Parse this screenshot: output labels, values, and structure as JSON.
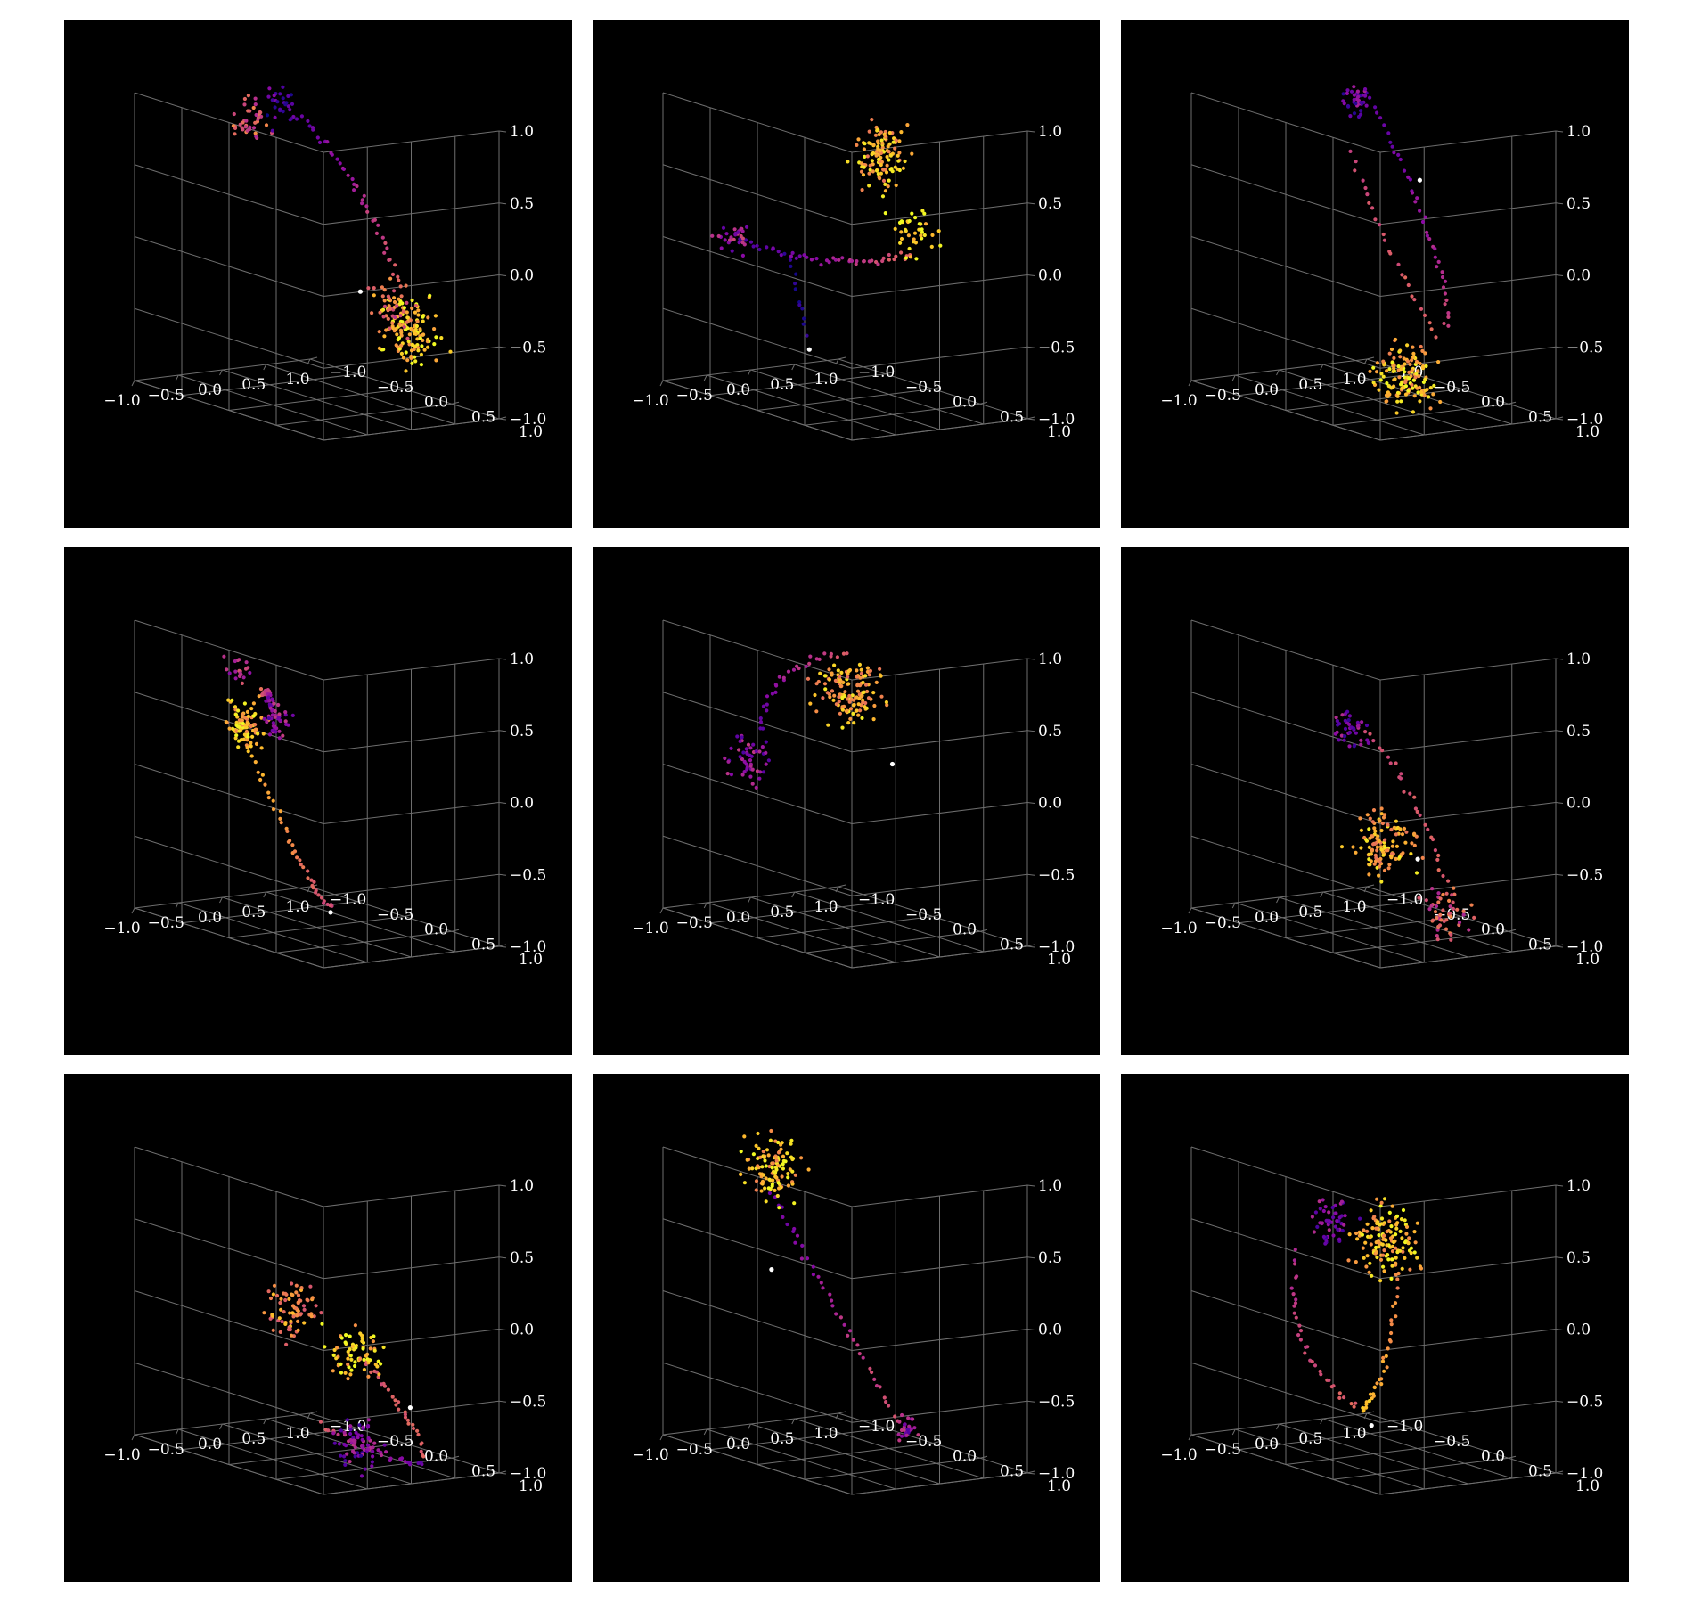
{
  "figure": {
    "background": "#ffffff",
    "panel_background": "#000000",
    "grid_color": "#6e6e6e",
    "colormap": "plasma",
    "layout": "3x3 grid"
  },
  "chart_data": [
    {
      "type": "scatter3d",
      "panel": 1,
      "xlim": [
        -1,
        1
      ],
      "ylim": [
        -1,
        1
      ],
      "zlim": [
        -1,
        1
      ],
      "x_ticks": [
        "−1.0",
        "−0.5",
        "0.0",
        "0.5",
        "1.0"
      ],
      "y_ticks": [
        "−1.0",
        "−0.5",
        "0.0",
        "0.5",
        "1.0"
      ],
      "z_ticks": [
        "−1.0",
        "−0.5",
        "0.0",
        "0.5",
        "1.0"
      ],
      "grid": true,
      "legend": "none",
      "clusters": [
        {
          "center": [
            0.05,
            -0.75,
            0.78
          ],
          "spread": 0.08,
          "n": 40,
          "c": 0.55
        },
        {
          "center": [
            0.15,
            -0.55,
            0.9
          ],
          "spread": 0.08,
          "n": 25,
          "c": 0.12
        },
        {
          "center": [
            0.85,
            0.2,
            -0.55
          ],
          "spread": 0.12,
          "n": 130,
          "c": 0.9
        },
        {
          "center": [
            0.8,
            0.1,
            -0.4
          ],
          "spread": 0.1,
          "n": 40,
          "c": 0.6
        }
      ],
      "arcs": [
        {
          "from": [
            0.2,
            -0.5,
            0.9
          ],
          "via": [
            0.8,
            -0.2,
            0.5
          ],
          "to": [
            0.8,
            0.15,
            -0.3
          ],
          "n": 45,
          "c": [
            0.15,
            0.6
          ]
        }
      ],
      "marker": [
        0.55,
        -0.05,
        -0.3
      ]
    },
    {
      "type": "scatter3d",
      "panel": 2,
      "xlim": [
        -1,
        1
      ],
      "ylim": [
        -1,
        1
      ],
      "zlim": [
        -1,
        1
      ],
      "x_ticks": [
        "−1.0",
        "−0.5",
        "0.0",
        "0.5",
        "1.0"
      ],
      "y_ticks": [
        "−1.0",
        "−0.5",
        "0.0",
        "0.5",
        "1.0"
      ],
      "z_ticks": [
        "−1.0",
        "−0.5",
        "0.0",
        "0.5",
        "1.0"
      ],
      "grid": true,
      "legend": "none",
      "clusters": [
        {
          "center": [
            -0.85,
            -0.4,
            0.1
          ],
          "spread": 0.06,
          "n": 30,
          "c": 0.35
        },
        {
          "center": [
            0.1,
            0.3,
            0.75
          ],
          "spread": 0.12,
          "n": 120,
          "c": 0.8
        },
        {
          "center": [
            0.2,
            0.55,
            0.25
          ],
          "spread": 0.1,
          "n": 40,
          "c": 0.95
        }
      ],
      "arcs": [
        {
          "from": [
            -0.8,
            -0.4,
            0.1
          ],
          "via": [
            -0.2,
            0.1,
            -0.1
          ],
          "to": [
            0.2,
            0.5,
            0.1
          ],
          "n": 50,
          "c": [
            0.1,
            0.6
          ]
        },
        {
          "from": [
            -0.35,
            -0.3,
            0.0
          ],
          "via": [
            -0.3,
            -0.2,
            -0.3
          ],
          "to": [
            -0.3,
            -0.15,
            -0.55
          ],
          "n": 12,
          "c": [
            0.05,
            0.05
          ]
        }
      ],
      "marker": [
        -0.3,
        -0.1,
        -0.65
      ]
    },
    {
      "type": "scatter3d",
      "panel": 3,
      "xlim": [
        -1,
        1
      ],
      "ylim": [
        -1,
        1
      ],
      "zlim": [
        -1,
        1
      ],
      "x_ticks": [
        "−1.0",
        "−0.5",
        "0.0",
        "0.5",
        "1.0"
      ],
      "y_ticks": [
        "−1.0",
        "−0.5",
        "0.0",
        "0.5",
        "1.0"
      ],
      "z_ticks": [
        "−1.0",
        "−0.5",
        "0.0",
        "0.5",
        "1.0"
      ],
      "grid": true,
      "legend": "none",
      "clusters": [
        {
          "center": [
            0.35,
            -0.5,
            0.95
          ],
          "spread": 0.06,
          "n": 40,
          "c": 0.2
        },
        {
          "center": [
            -0.05,
            0.35,
            -0.75
          ],
          "spread": 0.12,
          "n": 140,
          "c": 0.85
        }
      ],
      "arcs": [
        {
          "from": [
            0.45,
            -0.45,
            0.95
          ],
          "via": [
            0.95,
            -0.2,
            0.1
          ],
          "to": [
            0.65,
            0.2,
            -0.5
          ],
          "n": 40,
          "c": [
            0.15,
            0.5
          ]
        },
        {
          "from": [
            0.2,
            -0.4,
            0.6
          ],
          "via": [
            0.25,
            -0.1,
            0.0
          ],
          "to": [
            0.45,
            0.25,
            -0.55
          ],
          "n": 25,
          "c": [
            0.5,
            0.6
          ]
        }
      ],
      "marker": [
        0.85,
        -0.3,
        0.4
      ]
    },
    {
      "type": "scatter3d",
      "panel": 4,
      "xlim": [
        -1,
        1
      ],
      "ylim": [
        -1,
        1
      ],
      "zlim": [
        -1,
        1
      ],
      "x_ticks": [
        "−1.0",
        "−0.5",
        "0.0",
        "0.5",
        "1.0"
      ],
      "y_ticks": [
        "−1.0",
        "−0.5",
        "0.0",
        "0.5",
        "1.0"
      ],
      "z_ticks": [
        "−1.0",
        "−0.5",
        "0.0",
        "0.5",
        "1.0"
      ],
      "grid": true,
      "legend": "none",
      "clusters": [
        {
          "center": [
            -0.55,
            -0.25,
            0.4
          ],
          "spread": 0.08,
          "n": 90,
          "c": 0.85
        },
        {
          "center": [
            0.45,
            -0.85,
            0.25
          ],
          "spread": 0.07,
          "n": 40,
          "c": 0.3
        },
        {
          "center": [
            -0.5,
            -0.35,
            0.75
          ],
          "spread": 0.06,
          "n": 20,
          "c": 0.45
        }
      ],
      "arcs": [
        {
          "from": [
            -0.55,
            -0.3,
            0.4
          ],
          "via": [
            -0.3,
            0.1,
            -0.6
          ],
          "to": [
            0.05,
            0.1,
            -0.85
          ],
          "n": 45,
          "c": [
            0.9,
            0.5
          ]
        },
        {
          "from": [
            -0.35,
            -0.25,
            0.6
          ],
          "via": [
            0.05,
            -0.55,
            0.55
          ],
          "to": [
            0.4,
            -0.85,
            0.3
          ],
          "n": 30,
          "c": [
            0.6,
            0.2
          ]
        }
      ],
      "marker": [
        0.05,
        0.1,
        -0.88
      ]
    },
    {
      "type": "scatter3d",
      "panel": 5,
      "xlim": [
        -1,
        1
      ],
      "ylim": [
        -1,
        1
      ],
      "zlim": [
        -1,
        1
      ],
      "x_ticks": [
        "−1.0",
        "−0.5",
        "0.0",
        "0.5",
        "1.0"
      ],
      "y_ticks": [
        "−1.0",
        "−0.5",
        "0.0",
        "0.5",
        "1.0"
      ],
      "z_ticks": [
        "−1.0",
        "−0.5",
        "0.0",
        "0.5",
        "1.0"
      ],
      "grid": true,
      "legend": "none",
      "clusters": [
        {
          "center": [
            -0.55,
            -0.5,
            0.1
          ],
          "spread": 0.08,
          "n": 50,
          "c": 0.3
        },
        {
          "center": [
            0.35,
            -0.3,
            0.55
          ],
          "spread": 0.13,
          "n": 140,
          "c": 0.8
        }
      ],
      "arcs": [
        {
          "from": [
            -0.45,
            -0.5,
            0.3
          ],
          "via": [
            -0.1,
            -0.65,
            0.75
          ],
          "to": [
            0.45,
            -0.4,
            0.8
          ],
          "n": 30,
          "c": [
            0.15,
            0.55
          ]
        }
      ],
      "marker": [
        0.7,
        -0.15,
        0.05
      ]
    },
    {
      "type": "scatter3d",
      "panel": 6,
      "xlim": [
        -1,
        1
      ],
      "ylim": [
        -1,
        1
      ],
      "zlim": [
        -1,
        1
      ],
      "x_ticks": [
        "−1.0",
        "−0.5",
        "0.0",
        "0.5",
        "1.0"
      ],
      "y_ticks": [
        "−1.0",
        "−0.5",
        "0.0",
        "0.5",
        "1.0"
      ],
      "z_ticks": [
        "−1.0",
        "−0.5",
        "0.0",
        "0.5",
        "1.0"
      ],
      "grid": true,
      "legend": "none",
      "clusters": [
        {
          "center": [
            0.2,
            -0.45,
            0.25
          ],
          "spread": 0.07,
          "n": 40,
          "c": 0.25
        },
        {
          "center": [
            0.15,
            0.0,
            -0.45
          ],
          "spread": 0.12,
          "n": 120,
          "c": 0.8
        },
        {
          "center": [
            0.55,
            0.25,
            -0.9
          ],
          "spread": 0.1,
          "n": 50,
          "c": 0.55
        }
      ],
      "arcs": [
        {
          "from": [
            0.3,
            -0.35,
            0.25
          ],
          "via": [
            0.8,
            -0.2,
            -0.2
          ],
          "to": [
            0.7,
            0.2,
            -0.85
          ],
          "n": 30,
          "c": [
            0.5,
            0.6
          ]
        }
      ],
      "marker": [
        0.45,
        0.05,
        -0.55
      ]
    },
    {
      "type": "scatter3d",
      "panel": 7,
      "xlim": [
        -1,
        1
      ],
      "ylim": [
        -1,
        1
      ],
      "zlim": [
        -1,
        1
      ],
      "x_ticks": [
        "−1.0",
        "−0.5",
        "0.0",
        "0.5",
        "1.0"
      ],
      "y_ticks": [
        "−1.0",
        "−0.5",
        "0.0",
        "0.5",
        "1.0"
      ],
      "z_ticks": [
        "−1.0",
        "−0.5",
        "0.0",
        "0.5",
        "1.0"
      ],
      "grid": true,
      "legend": "none",
      "clusters": [
        {
          "center": [
            0.2,
            -0.45,
            -0.1
          ],
          "spread": 0.1,
          "n": 80,
          "c": 0.7
        },
        {
          "center": [
            0.5,
            -0.05,
            -0.35
          ],
          "spread": 0.1,
          "n": 70,
          "c": 0.9
        },
        {
          "center": [
            0.0,
            0.45,
            -0.85
          ],
          "spread": 0.09,
          "n": 60,
          "c": 0.25
        }
      ],
      "arcs": [
        {
          "from": [
            0.55,
            -0.05,
            -0.4
          ],
          "via": [
            0.9,
            0.1,
            -0.7
          ],
          "to": [
            0.7,
            0.5,
            -0.95
          ],
          "n": 30,
          "c": [
            0.55,
            0.6
          ]
        },
        {
          "from": [
            -0.3,
            0.3,
            -0.7
          ],
          "via": [
            0.2,
            0.55,
            -0.95
          ],
          "to": [
            0.6,
            0.55,
            -1.0
          ],
          "n": 30,
          "c": [
            0.55,
            0.2
          ]
        }
      ],
      "marker": [
        0.85,
        0.2,
        -0.7
      ]
    },
    {
      "type": "scatter3d",
      "panel": 8,
      "xlim": [
        -1,
        1
      ],
      "ylim": [
        -1,
        1
      ],
      "zlim": [
        -1,
        1
      ],
      "x_ticks": [
        "−1.0",
        "−0.5",
        "0.0",
        "0.5",
        "1.0"
      ],
      "y_ticks": [
        "−1.0",
        "−0.5",
        "0.0",
        "0.5",
        "1.0"
      ],
      "z_ticks": [
        "−1.0",
        "−0.5",
        "0.0",
        "0.5",
        "1.0"
      ],
      "grid": true,
      "legend": "none",
      "clusters": [
        {
          "center": [
            -0.1,
            -0.7,
            0.85
          ],
          "spread": 0.12,
          "n": 110,
          "c": 0.85
        },
        {
          "center": [
            0.6,
            0.1,
            -0.85
          ],
          "spread": 0.05,
          "n": 30,
          "c": 0.3
        }
      ],
      "arcs": [
        {
          "from": [
            -0.2,
            -0.6,
            0.7
          ],
          "via": [
            0.15,
            -0.3,
            0.0
          ],
          "to": [
            0.55,
            0.05,
            -0.8
          ],
          "n": 40,
          "c": [
            0.2,
            0.55
          ]
        }
      ],
      "marker": [
        -0.3,
        -0.5,
        0.2
      ]
    },
    {
      "type": "scatter3d",
      "panel": 9,
      "xlim": [
        -1,
        1
      ],
      "ylim": [
        -1,
        1
      ],
      "zlim": [
        -1,
        1
      ],
      "x_ticks": [
        "−1.0",
        "−0.5",
        "0.0",
        "0.5",
        "1.0"
      ],
      "y_ticks": [
        "−1.0",
        "−0.5",
        "0.0",
        "0.5",
        "1.0"
      ],
      "z_ticks": [
        "−1.0",
        "−0.5",
        "0.0",
        "0.5",
        "1.0"
      ],
      "grid": true,
      "legend": "none",
      "clusters": [
        {
          "center": [
            0.25,
            -0.1,
            0.45
          ],
          "spread": 0.13,
          "n": 140,
          "c": 0.85
        },
        {
          "center": [
            -0.1,
            -0.35,
            0.55
          ],
          "spread": 0.08,
          "n": 50,
          "c": 0.25
        }
      ],
      "arcs": [
        {
          "from": [
            -0.3,
            -0.55,
            0.3
          ],
          "via": [
            -0.7,
            -0.3,
            -0.4
          ],
          "to": [
            -0.45,
            0.3,
            -0.6
          ],
          "n": 35,
          "c": [
            0.4,
            0.6
          ]
        },
        {
          "from": [
            -0.45,
            0.3,
            -0.6
          ],
          "via": [
            0.0,
            0.1,
            -0.6
          ],
          "to": [
            0.4,
            -0.1,
            0.2
          ],
          "n": 35,
          "c": [
            0.9,
            0.7
          ]
        }
      ],
      "marker": [
        -0.4,
        0.35,
        -0.7
      ]
    }
  ]
}
